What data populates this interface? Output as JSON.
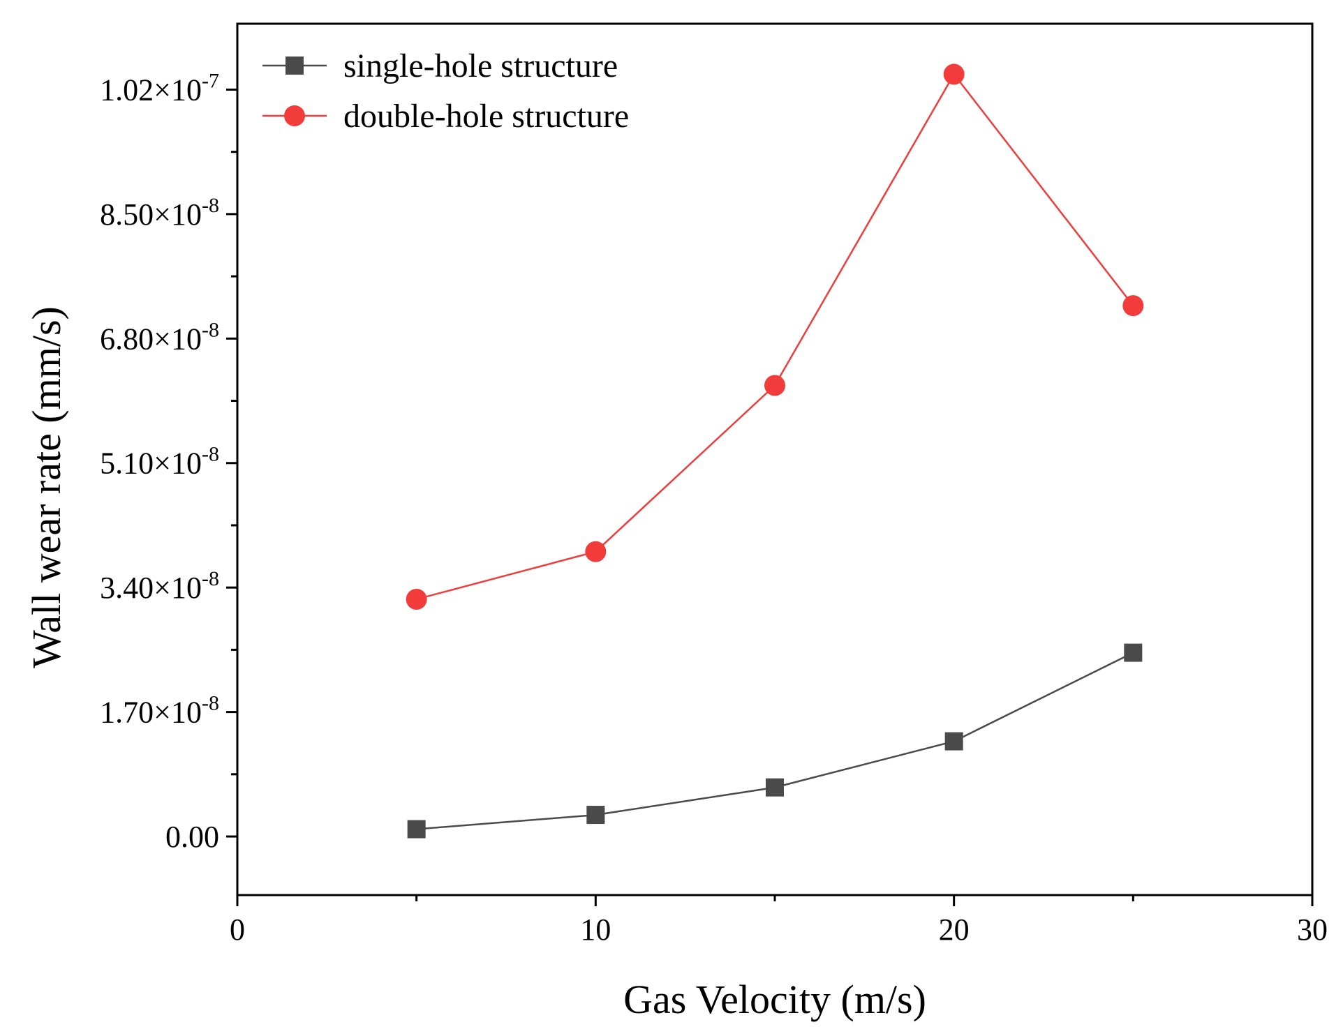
{
  "chart_data": {
    "type": "line",
    "title": "",
    "xlabel": "Gas Velocity (m/s)",
    "ylabel": "Wall wear rate  (mm/s)",
    "xlim": [
      0,
      30
    ],
    "ylim": [
      -8e-09,
      1.11e-07
    ],
    "x_ticks": [
      {
        "value": 0,
        "label": "0"
      },
      {
        "value": 10,
        "label": "10"
      },
      {
        "value": 20,
        "label": "20"
      },
      {
        "value": 30,
        "label": "30"
      }
    ],
    "y_ticks": [
      {
        "value": 0,
        "mantissa": "0.00",
        "exp": ""
      },
      {
        "value": 1.7e-08,
        "mantissa": "1.70×10",
        "exp": "-8"
      },
      {
        "value": 3.4e-08,
        "mantissa": "3.40×10",
        "exp": "-8"
      },
      {
        "value": 5.1e-08,
        "mantissa": "5.10×10",
        "exp": "-8"
      },
      {
        "value": 6.8e-08,
        "mantissa": "6.80×10",
        "exp": "-8"
      },
      {
        "value": 8.5e-08,
        "mantissa": "8.50×10",
        "exp": "-8"
      },
      {
        "value": 1.02e-07,
        "mantissa": "1.02×10",
        "exp": "-7"
      }
    ],
    "grid": false,
    "legend_position": "top-left",
    "x": [
      5,
      10,
      15,
      20,
      25
    ],
    "series": [
      {
        "name": "single-hole structure",
        "marker": "square",
        "color": "#4a4a4a",
        "values": [
          1e-09,
          2.95e-09,
          6.7e-09,
          1.3e-08,
          2.51e-08
        ]
      },
      {
        "name": "double-hole structure",
        "marker": "circle",
        "color": "#f23b3b",
        "values": [
          3.24e-08,
          3.89e-08,
          6.16e-08,
          1.041e-07,
          7.25e-08
        ]
      }
    ]
  }
}
